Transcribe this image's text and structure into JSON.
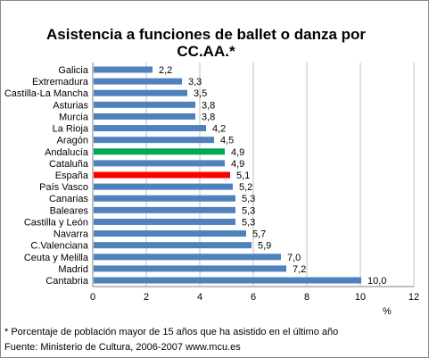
{
  "chart_data": {
    "type": "bar",
    "orientation": "horizontal",
    "title": "Asistencia a funciones de ballet o danza por CC.AA.*",
    "xlabel": "%",
    "xlim": [
      0,
      12
    ],
    "xticks": [
      "0",
      "2",
      "4",
      "6",
      "8",
      "10",
      "12"
    ],
    "grid": "vertical",
    "categories": [
      "Galicia",
      "Extremadura",
      "Castilla-La Mancha",
      "Asturias",
      "Murcia",
      "La Rioja",
      "Aragón",
      "Andalucía",
      "Cataluña",
      "España",
      "País Vasco",
      "Canarias",
      "Baleares",
      "Castilla y León",
      "Navarra",
      "C.Valenciana",
      "Ceuta y Melilla",
      "Madrid",
      "Cantabria"
    ],
    "values": [
      2.2,
      3.3,
      3.5,
      3.8,
      3.8,
      4.2,
      4.5,
      4.9,
      4.9,
      5.1,
      5.2,
      5.3,
      5.3,
      5.3,
      5.7,
      5.9,
      7.0,
      7.2,
      10.0
    ],
    "value_labels": [
      "2,2",
      "3,3",
      "3,5",
      "3,8",
      "3,8",
      "4,2",
      "4,5",
      "4,9",
      "4,9",
      "5,1",
      "5,2",
      "5,3",
      "5,3",
      "5,3",
      "5,7",
      "5,9",
      "7,0",
      "7,2",
      "10,0"
    ],
    "colors": {
      "default": "#4f81bd",
      "highlight": {
        "Andalucía": "#00a651",
        "España": "#ff0000"
      },
      "grid": "#c0c0c0",
      "axis": "#808080"
    }
  },
  "footnote": "* Porcentaje de población mayor de 15 años que ha asistido en el último año",
  "source": "Fuente: Ministerio de Cultura, 2006-2007   www.mcu.es"
}
